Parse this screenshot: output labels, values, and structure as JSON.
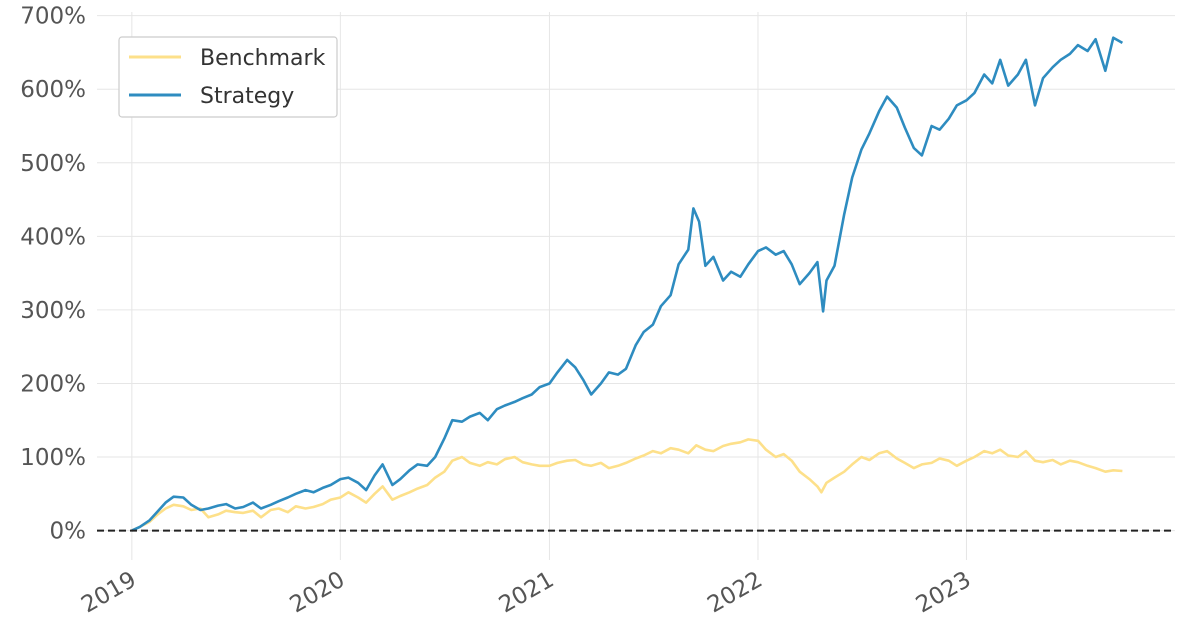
{
  "chart_data": {
    "type": "line",
    "title": "",
    "xlabel": "",
    "ylabel": "",
    "x_axis_type": "date",
    "xlim": [
      "2018-11-01",
      "2024-01-01"
    ],
    "ylim": [
      -40,
      705
    ],
    "x_ticks": [
      {
        "date": "2019-01-01",
        "label": "2019"
      },
      {
        "date": "2020-01-01",
        "label": "2020"
      },
      {
        "date": "2021-01-01",
        "label": "2021"
      },
      {
        "date": "2022-01-01",
        "label": "2022"
      },
      {
        "date": "2023-01-01",
        "label": "2023"
      }
    ],
    "y_ticks": [
      {
        "value": 0,
        "label": "0%"
      },
      {
        "value": 100,
        "label": "100%"
      },
      {
        "value": 200,
        "label": "200%"
      },
      {
        "value": 300,
        "label": "300%"
      },
      {
        "value": 400,
        "label": "400%"
      },
      {
        "value": 500,
        "label": "500%"
      },
      {
        "value": 600,
        "label": "600%"
      },
      {
        "value": 700,
        "label": "700%"
      }
    ],
    "grid": true,
    "legend_position": "top-left",
    "reference_line": {
      "value": 0,
      "style": "dashed",
      "color": "#222222"
    },
    "series": [
      {
        "name": "Benchmark",
        "color": "#fde08a",
        "points": [
          [
            "2019-01-01",
            0
          ],
          [
            "2019-01-15",
            5
          ],
          [
            "2019-02-01",
            12
          ],
          [
            "2019-02-15",
            22
          ],
          [
            "2019-03-01",
            30
          ],
          [
            "2019-03-15",
            35
          ],
          [
            "2019-04-01",
            33
          ],
          [
            "2019-04-15",
            28
          ],
          [
            "2019-05-01",
            30
          ],
          [
            "2019-05-15",
            18
          ],
          [
            "2019-06-01",
            22
          ],
          [
            "2019-06-15",
            27
          ],
          [
            "2019-07-01",
            25
          ],
          [
            "2019-07-15",
            24
          ],
          [
            "2019-08-01",
            27
          ],
          [
            "2019-08-15",
            18
          ],
          [
            "2019-09-01",
            28
          ],
          [
            "2019-09-15",
            30
          ],
          [
            "2019-10-01",
            25
          ],
          [
            "2019-10-15",
            33
          ],
          [
            "2019-11-01",
            30
          ],
          [
            "2019-11-15",
            32
          ],
          [
            "2019-12-01",
            36
          ],
          [
            "2019-12-15",
            42
          ],
          [
            "2020-01-01",
            45
          ],
          [
            "2020-01-15",
            52
          ],
          [
            "2020-02-01",
            45
          ],
          [
            "2020-02-15",
            38
          ],
          [
            "2020-03-01",
            50
          ],
          [
            "2020-03-15",
            60
          ],
          [
            "2020-04-01",
            42
          ],
          [
            "2020-04-15",
            47
          ],
          [
            "2020-05-01",
            52
          ],
          [
            "2020-05-15",
            57
          ],
          [
            "2020-06-01",
            62
          ],
          [
            "2020-06-15",
            72
          ],
          [
            "2020-07-01",
            80
          ],
          [
            "2020-07-15",
            95
          ],
          [
            "2020-08-01",
            100
          ],
          [
            "2020-08-15",
            92
          ],
          [
            "2020-09-01",
            88
          ],
          [
            "2020-09-15",
            93
          ],
          [
            "2020-10-01",
            90
          ],
          [
            "2020-10-15",
            97
          ],
          [
            "2020-11-01",
            100
          ],
          [
            "2020-11-15",
            93
          ],
          [
            "2020-12-01",
            90
          ],
          [
            "2020-12-15",
            88
          ],
          [
            "2021-01-01",
            88
          ],
          [
            "2021-01-15",
            92
          ],
          [
            "2021-02-01",
            95
          ],
          [
            "2021-02-15",
            96
          ],
          [
            "2021-03-01",
            90
          ],
          [
            "2021-03-15",
            88
          ],
          [
            "2021-04-01",
            92
          ],
          [
            "2021-04-15",
            85
          ],
          [
            "2021-05-01",
            88
          ],
          [
            "2021-05-15",
            92
          ],
          [
            "2021-06-01",
            98
          ],
          [
            "2021-06-15",
            102
          ],
          [
            "2021-07-01",
            108
          ],
          [
            "2021-07-15",
            105
          ],
          [
            "2021-08-01",
            112
          ],
          [
            "2021-08-15",
            110
          ],
          [
            "2021-09-01",
            105
          ],
          [
            "2021-09-15",
            116
          ],
          [
            "2021-10-01",
            110
          ],
          [
            "2021-10-15",
            108
          ],
          [
            "2021-11-01",
            115
          ],
          [
            "2021-11-15",
            118
          ],
          [
            "2021-12-01",
            120
          ],
          [
            "2021-12-15",
            124
          ],
          [
            "2022-01-01",
            122
          ],
          [
            "2022-01-15",
            110
          ],
          [
            "2022-02-01",
            100
          ],
          [
            "2022-02-15",
            104
          ],
          [
            "2022-03-01",
            95
          ],
          [
            "2022-03-15",
            80
          ],
          [
            "2022-04-01",
            70
          ],
          [
            "2022-04-15",
            60
          ],
          [
            "2022-04-22",
            52
          ],
          [
            "2022-05-01",
            65
          ],
          [
            "2022-05-15",
            72
          ],
          [
            "2022-06-01",
            80
          ],
          [
            "2022-06-15",
            90
          ],
          [
            "2022-07-01",
            100
          ],
          [
            "2022-07-15",
            96
          ],
          [
            "2022-08-01",
            105
          ],
          [
            "2022-08-15",
            108
          ],
          [
            "2022-09-01",
            98
          ],
          [
            "2022-09-15",
            92
          ],
          [
            "2022-10-01",
            85
          ],
          [
            "2022-10-15",
            90
          ],
          [
            "2022-11-01",
            92
          ],
          [
            "2022-11-15",
            98
          ],
          [
            "2022-12-01",
            95
          ],
          [
            "2022-12-15",
            88
          ],
          [
            "2023-01-01",
            95
          ],
          [
            "2023-01-15",
            100
          ],
          [
            "2023-02-01",
            108
          ],
          [
            "2023-02-15",
            105
          ],
          [
            "2023-03-01",
            110
          ],
          [
            "2023-03-15",
            102
          ],
          [
            "2023-04-01",
            100
          ],
          [
            "2023-04-15",
            108
          ],
          [
            "2023-05-01",
            95
          ],
          [
            "2023-05-15",
            93
          ],
          [
            "2023-06-01",
            96
          ],
          [
            "2023-06-15",
            90
          ],
          [
            "2023-07-01",
            95
          ],
          [
            "2023-07-15",
            93
          ],
          [
            "2023-08-01",
            88
          ],
          [
            "2023-08-15",
            85
          ],
          [
            "2023-09-01",
            80
          ],
          [
            "2023-09-15",
            82
          ],
          [
            "2023-10-01",
            81
          ]
        ]
      },
      {
        "name": "Strategy",
        "color": "#2e8cc0",
        "points": [
          [
            "2019-01-01",
            0
          ],
          [
            "2019-01-15",
            5
          ],
          [
            "2019-02-01",
            14
          ],
          [
            "2019-02-15",
            26
          ],
          [
            "2019-03-01",
            38
          ],
          [
            "2019-03-15",
            46
          ],
          [
            "2019-04-01",
            45
          ],
          [
            "2019-04-15",
            35
          ],
          [
            "2019-05-01",
            28
          ],
          [
            "2019-05-15",
            30
          ],
          [
            "2019-06-01",
            34
          ],
          [
            "2019-06-15",
            36
          ],
          [
            "2019-07-01",
            30
          ],
          [
            "2019-07-15",
            32
          ],
          [
            "2019-08-01",
            38
          ],
          [
            "2019-08-15",
            30
          ],
          [
            "2019-09-01",
            35
          ],
          [
            "2019-09-15",
            40
          ],
          [
            "2019-10-01",
            45
          ],
          [
            "2019-10-15",
            50
          ],
          [
            "2019-11-01",
            55
          ],
          [
            "2019-11-15",
            52
          ],
          [
            "2019-12-01",
            58
          ],
          [
            "2019-12-15",
            62
          ],
          [
            "2020-01-01",
            70
          ],
          [
            "2020-01-15",
            72
          ],
          [
            "2020-02-01",
            65
          ],
          [
            "2020-02-15",
            55
          ],
          [
            "2020-03-01",
            75
          ],
          [
            "2020-03-15",
            90
          ],
          [
            "2020-04-01",
            62
          ],
          [
            "2020-04-15",
            70
          ],
          [
            "2020-05-01",
            82
          ],
          [
            "2020-05-15",
            90
          ],
          [
            "2020-06-01",
            88
          ],
          [
            "2020-06-15",
            100
          ],
          [
            "2020-07-01",
            125
          ],
          [
            "2020-07-15",
            150
          ],
          [
            "2020-08-01",
            148
          ],
          [
            "2020-08-15",
            155
          ],
          [
            "2020-09-01",
            160
          ],
          [
            "2020-09-15",
            150
          ],
          [
            "2020-10-01",
            165
          ],
          [
            "2020-10-15",
            170
          ],
          [
            "2020-11-01",
            175
          ],
          [
            "2020-11-15",
            180
          ],
          [
            "2020-12-01",
            185
          ],
          [
            "2020-12-15",
            195
          ],
          [
            "2021-01-01",
            200
          ],
          [
            "2021-01-15",
            215
          ],
          [
            "2021-02-01",
            232
          ],
          [
            "2021-02-15",
            222
          ],
          [
            "2021-03-01",
            205
          ],
          [
            "2021-03-15",
            185
          ],
          [
            "2021-04-01",
            200
          ],
          [
            "2021-04-15",
            215
          ],
          [
            "2021-05-01",
            212
          ],
          [
            "2021-05-15",
            220
          ],
          [
            "2021-06-01",
            252
          ],
          [
            "2021-06-15",
            270
          ],
          [
            "2021-07-01",
            280
          ],
          [
            "2021-07-15",
            305
          ],
          [
            "2021-08-01",
            320
          ],
          [
            "2021-08-15",
            362
          ],
          [
            "2021-09-01",
            382
          ],
          [
            "2021-09-10",
            438
          ],
          [
            "2021-09-20",
            420
          ],
          [
            "2021-10-01",
            360
          ],
          [
            "2021-10-15",
            372
          ],
          [
            "2021-11-01",
            340
          ],
          [
            "2021-11-15",
            352
          ],
          [
            "2021-12-01",
            345
          ],
          [
            "2021-12-15",
            362
          ],
          [
            "2022-01-01",
            380
          ],
          [
            "2022-01-15",
            385
          ],
          [
            "2022-02-01",
            375
          ],
          [
            "2022-02-15",
            380
          ],
          [
            "2022-03-01",
            362
          ],
          [
            "2022-03-15",
            335
          ],
          [
            "2022-04-01",
            350
          ],
          [
            "2022-04-15",
            365
          ],
          [
            "2022-04-25",
            298
          ],
          [
            "2022-05-01",
            340
          ],
          [
            "2022-05-15",
            360
          ],
          [
            "2022-06-01",
            430
          ],
          [
            "2022-06-15",
            480
          ],
          [
            "2022-07-01",
            518
          ],
          [
            "2022-07-15",
            540
          ],
          [
            "2022-08-01",
            570
          ],
          [
            "2022-08-15",
            590
          ],
          [
            "2022-09-01",
            575
          ],
          [
            "2022-09-15",
            548
          ],
          [
            "2022-10-01",
            520
          ],
          [
            "2022-10-15",
            510
          ],
          [
            "2022-11-01",
            550
          ],
          [
            "2022-11-15",
            545
          ],
          [
            "2022-12-01",
            560
          ],
          [
            "2022-12-15",
            578
          ],
          [
            "2023-01-01",
            585
          ],
          [
            "2023-01-15",
            595
          ],
          [
            "2023-02-01",
            620
          ],
          [
            "2023-02-15",
            608
          ],
          [
            "2023-03-01",
            640
          ],
          [
            "2023-03-15",
            605
          ],
          [
            "2023-04-01",
            620
          ],
          [
            "2023-04-15",
            640
          ],
          [
            "2023-05-01",
            578
          ],
          [
            "2023-05-15",
            615
          ],
          [
            "2023-06-01",
            630
          ],
          [
            "2023-06-15",
            640
          ],
          [
            "2023-07-01",
            648
          ],
          [
            "2023-07-15",
            660
          ],
          [
            "2023-08-01",
            652
          ],
          [
            "2023-08-15",
            668
          ],
          [
            "2023-09-01",
            625
          ],
          [
            "2023-09-15",
            670
          ],
          [
            "2023-10-01",
            663
          ]
        ]
      }
    ]
  }
}
